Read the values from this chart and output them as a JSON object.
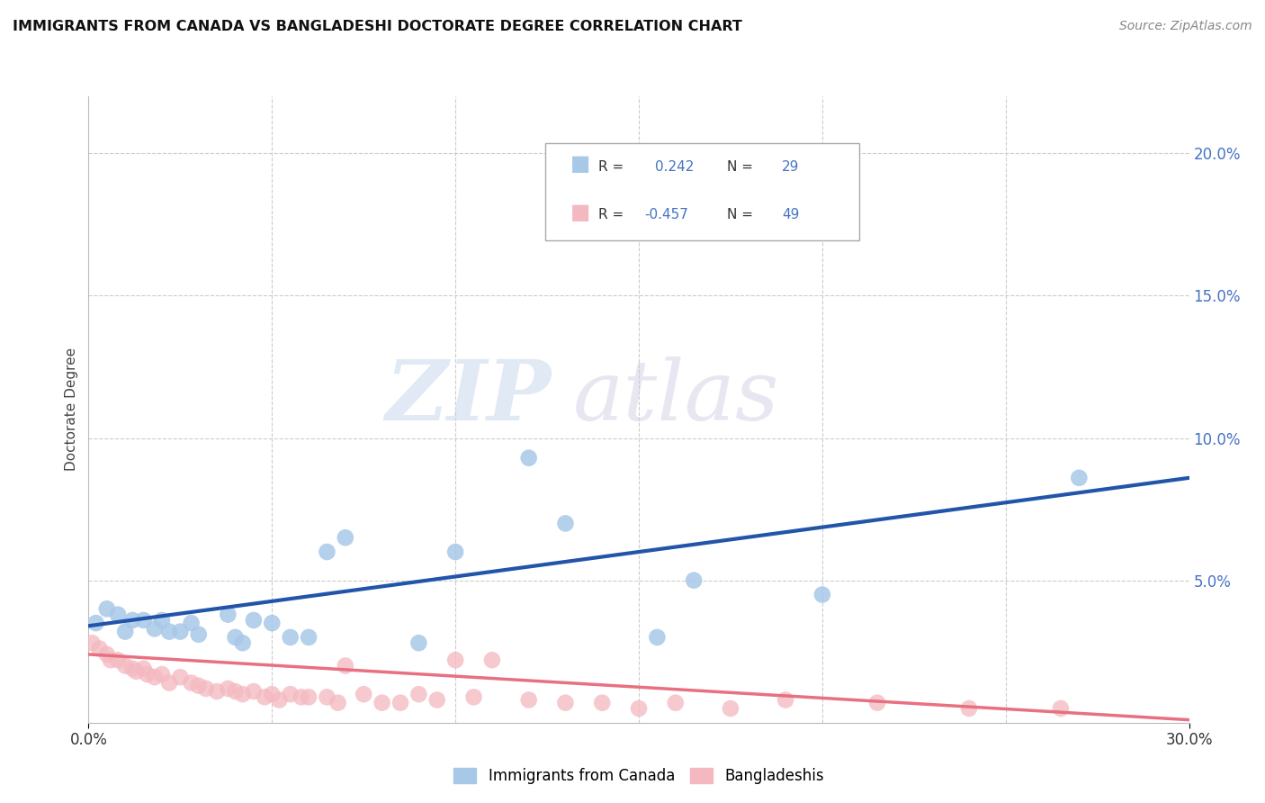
{
  "title": "IMMIGRANTS FROM CANADA VS BANGLADESHI DOCTORATE DEGREE CORRELATION CHART",
  "source": "Source: ZipAtlas.com",
  "ylabel": "Doctorate Degree",
  "xlim": [
    0.0,
    0.3
  ],
  "ylim": [
    0.0,
    0.22
  ],
  "yticks_right": [
    0.0,
    0.05,
    0.1,
    0.15,
    0.2
  ],
  "ytick_labels_right": [
    "",
    "5.0%",
    "10.0%",
    "15.0%",
    "20.0%"
  ],
  "r_canada": 0.242,
  "n_canada": 29,
  "r_bangladeshi": -0.457,
  "n_bangladeshi": 49,
  "blue_color": "#a8c8e8",
  "pink_color": "#f4b8c0",
  "blue_line_color": "#2255aa",
  "pink_line_color": "#e87080",
  "watermark_zip": "ZIP",
  "watermark_atlas": "atlas",
  "background_color": "#ffffff",
  "grid_color": "#cccccc",
  "canada_points_x": [
    0.002,
    0.005,
    0.008,
    0.01,
    0.012,
    0.015,
    0.018,
    0.02,
    0.022,
    0.025,
    0.028,
    0.03,
    0.038,
    0.04,
    0.042,
    0.045,
    0.05,
    0.055,
    0.06,
    0.065,
    0.07,
    0.09,
    0.1,
    0.12,
    0.13,
    0.155,
    0.165,
    0.2,
    0.27
  ],
  "canada_points_y": [
    0.035,
    0.04,
    0.038,
    0.032,
    0.036,
    0.036,
    0.033,
    0.036,
    0.032,
    0.032,
    0.035,
    0.031,
    0.038,
    0.03,
    0.028,
    0.036,
    0.035,
    0.03,
    0.03,
    0.06,
    0.065,
    0.028,
    0.06,
    0.093,
    0.07,
    0.03,
    0.05,
    0.045,
    0.086
  ],
  "bangladeshi_points_x": [
    0.001,
    0.003,
    0.005,
    0.006,
    0.008,
    0.01,
    0.012,
    0.013,
    0.015,
    0.016,
    0.018,
    0.02,
    0.022,
    0.025,
    0.028,
    0.03,
    0.032,
    0.035,
    0.038,
    0.04,
    0.042,
    0.045,
    0.048,
    0.05,
    0.052,
    0.055,
    0.058,
    0.06,
    0.065,
    0.068,
    0.07,
    0.075,
    0.08,
    0.085,
    0.09,
    0.095,
    0.1,
    0.105,
    0.11,
    0.12,
    0.13,
    0.14,
    0.15,
    0.16,
    0.175,
    0.19,
    0.215,
    0.24,
    0.265
  ],
  "bangladeshi_points_y": [
    0.028,
    0.026,
    0.024,
    0.022,
    0.022,
    0.02,
    0.019,
    0.018,
    0.019,
    0.017,
    0.016,
    0.017,
    0.014,
    0.016,
    0.014,
    0.013,
    0.012,
    0.011,
    0.012,
    0.011,
    0.01,
    0.011,
    0.009,
    0.01,
    0.008,
    0.01,
    0.009,
    0.009,
    0.009,
    0.007,
    0.02,
    0.01,
    0.007,
    0.007,
    0.01,
    0.008,
    0.022,
    0.009,
    0.022,
    0.008,
    0.007,
    0.007,
    0.005,
    0.007,
    0.005,
    0.008,
    0.007,
    0.005,
    0.005
  ],
  "blue_trend_x0": 0.0,
  "blue_trend_y0": 0.034,
  "blue_trend_x1": 0.3,
  "blue_trend_y1": 0.086,
  "pink_trend_x0": 0.0,
  "pink_trend_y0": 0.024,
  "pink_trend_x1": 0.3,
  "pink_trend_y1": 0.001
}
